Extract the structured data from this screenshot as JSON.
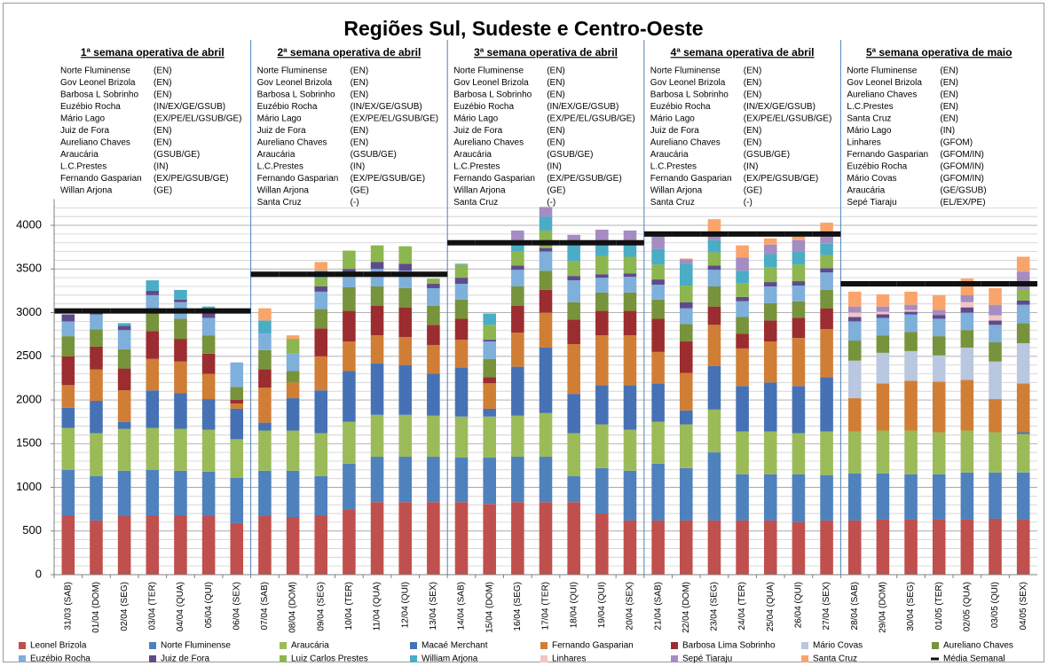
{
  "chart_data": {
    "type": "bar",
    "stacked": true,
    "title": "Regiões Sul, Sudeste e Centro-Oeste",
    "categories": [
      "31/03 (SAB)",
      "01/04 (DOM)",
      "02/04 (SEG)",
      "03/04 (TER)",
      "04/04 (QUA)",
      "05/04 (QUI)",
      "06/04 (SEX)",
      "07/04 (SAB)",
      "08/04 (DOM)",
      "09/04 (SEG)",
      "10/04 (TER)",
      "11/04 (QUA)",
      "12/04 (QUI)",
      "13/04 (SEX)",
      "14/04 (SAB)",
      "15/04 (DOM)",
      "16/04 (SEG)",
      "17/04 (TER)",
      "18/04 (QUI)",
      "19/04 (QUI)",
      "20/04 (SEX)",
      "21/04 (SAB)",
      "22/04 (DOM)",
      "23/04 (SEG)",
      "24/04 (TER)",
      "25/04 (QUA)",
      "26/04 (QUI)",
      "27/04 (SEX)",
      "28/04 (SAB)",
      "29/04 (DOM)",
      "30/04 (SEG)",
      "01/05 (TER)",
      "02/05 (QUA)",
      "03/05 (QUI)",
      "04/05 (SEX)"
    ],
    "series": [
      {
        "name": "Leonel Brizola",
        "color": "#C0504D",
        "values": [
          680,
          620,
          670,
          680,
          680,
          670,
          590,
          670,
          660,
          680,
          750,
          830,
          830,
          830,
          830,
          810,
          830,
          830,
          830,
          700,
          620,
          620,
          620,
          620,
          620,
          620,
          600,
          620,
          620,
          630,
          630,
          630,
          630,
          640,
          630
        ]
      },
      {
        "name": "Norte Fluminense",
        "color": "#4F81BD",
        "values": [
          520,
          510,
          520,
          520,
          510,
          510,
          520,
          520,
          530,
          450,
          520,
          520,
          520,
          520,
          510,
          530,
          520,
          520,
          300,
          520,
          570,
          650,
          600,
          780,
          530,
          530,
          550,
          520,
          540,
          530,
          520,
          520,
          540,
          530,
          540
        ]
      },
      {
        "name": "Araucária",
        "color": "#9BBB59",
        "values": [
          480,
          490,
          480,
          480,
          480,
          480,
          440,
          460,
          460,
          490,
          480,
          480,
          480,
          470,
          470,
          470,
          470,
          500,
          490,
          500,
          470,
          480,
          500,
          490,
          490,
          490,
          470,
          500,
          480,
          490,
          500,
          480,
          480,
          460,
          440
        ]
      },
      {
        "name": "Macaé Merchant",
        "color": "#4672B5",
        "values": [
          230,
          370,
          80,
          430,
          410,
          350,
          350,
          90,
          370,
          490,
          580,
          590,
          570,
          480,
          560,
          90,
          560,
          750,
          450,
          450,
          510,
          440,
          160,
          500,
          520,
          560,
          540,
          620,
          0,
          0,
          0,
          0,
          0,
          0,
          20
        ]
      },
      {
        "name": "Fernando Gasparian",
        "color": "#D07E36",
        "values": [
          260,
          360,
          360,
          360,
          360,
          290,
          60,
          400,
          180,
          390,
          340,
          320,
          320,
          330,
          320,
          290,
          390,
          400,
          570,
          570,
          570,
          360,
          430,
          470,
          430,
          470,
          550,
          550,
          380,
          540,
          570,
          580,
          580,
          380,
          560
        ]
      },
      {
        "name": "Barbosa Lima Sobrinho",
        "color": "#9B2D30",
        "values": [
          330,
          260,
          250,
          320,
          260,
          230,
          40,
          210,
          0,
          320,
          350,
          340,
          340,
          230,
          240,
          70,
          310,
          260,
          280,
          280,
          280,
          380,
          360,
          210,
          170,
          240,
          230,
          240,
          0,
          0,
          0,
          0,
          0,
          0,
          0
        ]
      },
      {
        "name": "Mário Covas",
        "color": "#B9C7E0",
        "values": [
          0,
          0,
          0,
          0,
          0,
          0,
          0,
          0,
          0,
          0,
          0,
          0,
          0,
          0,
          0,
          0,
          0,
          0,
          0,
          0,
          0,
          0,
          0,
          0,
          0,
          0,
          0,
          0,
          430,
          350,
          340,
          300,
          370,
          430,
          460
        ]
      },
      {
        "name": "Aureliano Chaves",
        "color": "#77933C",
        "values": [
          230,
          200,
          220,
          200,
          230,
          210,
          150,
          220,
          130,
          220,
          270,
          220,
          220,
          220,
          220,
          210,
          220,
          220,
          200,
          210,
          210,
          220,
          200,
          230,
          190,
          200,
          190,
          210,
          230,
          200,
          220,
          220,
          200,
          220,
          230
        ]
      },
      {
        "name": "Euzébio Rocha",
        "color": "#7FAFDB",
        "values": [
          170,
          170,
          220,
          210,
          190,
          200,
          280,
          190,
          200,
          200,
          170,
          200,
          200,
          200,
          180,
          200,
          190,
          220,
          250,
          170,
          180,
          170,
          180,
          190,
          180,
          190,
          180,
          200,
          220,
          200,
          200,
          200,
          200,
          200,
          210
        ]
      },
      {
        "name": "Juiz de Fora",
        "color": "#5F4B8B",
        "values": [
          80,
          20,
          50,
          50,
          30,
          50,
          0,
          0,
          0,
          60,
          40,
          80,
          80,
          50,
          70,
          20,
          50,
          40,
          50,
          40,
          40,
          60,
          70,
          50,
          50,
          50,
          50,
          50,
          50,
          40,
          30,
          40,
          60,
          50,
          50
        ]
      },
      {
        "name": "Luiz Carlos Prestes",
        "color": "#8DB650",
        "values": [
          0,
          0,
          0,
          0,
          0,
          0,
          0,
          0,
          170,
          100,
          210,
          190,
          200,
          60,
          150,
          170,
          160,
          200,
          170,
          210,
          190,
          170,
          190,
          150,
          160,
          170,
          190,
          150,
          0,
          0,
          0,
          0,
          0,
          0,
          130
        ]
      },
      {
        "name": "William Arjona",
        "color": "#4BACC6",
        "values": [
          0,
          0,
          30,
          120,
          110,
          80,
          0,
          150,
          0,
          80,
          0,
          0,
          0,
          0,
          10,
          130,
          110,
          160,
          180,
          150,
          150,
          180,
          250,
          140,
          140,
          150,
          150,
          130,
          0,
          0,
          0,
          0,
          0,
          0,
          0
        ]
      },
      {
        "name": "Linhares",
        "color": "#F2C4C3",
        "values": [
          0,
          0,
          0,
          0,
          0,
          0,
          0,
          0,
          0,
          0,
          0,
          0,
          0,
          0,
          0,
          0,
          0,
          0,
          0,
          0,
          0,
          0,
          0,
          0,
          0,
          0,
          0,
          0,
          50,
          30,
          20,
          0,
          60,
          60,
          0
        ]
      },
      {
        "name": "Sepé Tiaraju",
        "color": "#A58CC2",
        "values": [
          0,
          0,
          0,
          0,
          0,
          0,
          0,
          0,
          0,
          0,
          0,
          0,
          0,
          0,
          0,
          0,
          130,
          110,
          120,
          150,
          150,
          200,
          50,
          100,
          150,
          110,
          130,
          120,
          70,
          60,
          60,
          60,
          80,
          120,
          200
        ]
      },
      {
        "name": "Santa Cruz",
        "color": "#F9A46B",
        "values": [
          0,
          0,
          0,
          0,
          0,
          0,
          0,
          140,
          40,
          100,
          0,
          0,
          0,
          0,
          0,
          0,
          0,
          0,
          0,
          0,
          0,
          0,
          10,
          140,
          140,
          70,
          40,
          120,
          170,
          140,
          150,
          170,
          190,
          190,
          170
        ]
      },
      {
        "name": "Média Semanal",
        "type": "line",
        "color": "#111111",
        "values": [
          3020,
          3020,
          3020,
          3020,
          3020,
          3020,
          3020,
          3440,
          3440,
          3440,
          3440,
          3440,
          3440,
          3440,
          3800,
          3800,
          3800,
          3800,
          3800,
          3800,
          3800,
          3900,
          3900,
          3900,
          3900,
          3900,
          3900,
          3900,
          3330,
          3330,
          3330,
          3330,
          3330,
          3330,
          3330
        ]
      }
    ],
    "ylim": [
      0,
      4300
    ],
    "yticks": [
      0,
      500,
      1000,
      1500,
      2000,
      2500,
      3000,
      3500,
      4000
    ],
    "minor_yticks": [
      100,
      200,
      300,
      400,
      600,
      700,
      800,
      900,
      1100,
      1200,
      1300,
      1400,
      1600,
      1700,
      1800,
      1900,
      2100,
      2200,
      2300,
      2400,
      2600,
      2700,
      2800,
      2900,
      3100,
      3200,
      3300,
      3400,
      3600,
      3700,
      3800,
      3900,
      4100,
      4200
    ],
    "grid": true,
    "panels": [
      {
        "title": "1ª semana operativa de abril",
        "items": [
          [
            "Norte Fluminense",
            "(EN)"
          ],
          [
            "Gov Leonel Brizola",
            "(EN)"
          ],
          [
            "Barbosa L Sobrinho",
            "(EN)"
          ],
          [
            "Euzébio Rocha",
            "(IN/EX/GE/GSUB)"
          ],
          [
            "Mário Lago",
            "(EX/PE/EL/GSUB/GE)"
          ],
          [
            "Juiz de Fora",
            "(EN)"
          ],
          [
            "Aureliano Chaves",
            "(EN)"
          ],
          [
            "Araucária",
            "(GSUB/GE)"
          ],
          [
            "L.C.Prestes",
            "(IN)"
          ],
          [
            "Fernando Gasparian",
            "(EX/PE/GSUB/GE)"
          ],
          [
            "Willan Arjona",
            "(GE)"
          ]
        ]
      },
      {
        "title": "2ª semana  operativa de abril",
        "items": [
          [
            "Norte Fluminense",
            "(EN)"
          ],
          [
            "Gov Leonel Brizola",
            "(EN)"
          ],
          [
            "Barbosa L Sobrinho",
            "(EN)"
          ],
          [
            "Euzébio Rocha",
            "(IN/EX/GE/GSUB)"
          ],
          [
            "Mário Lago",
            "(EX/PE/EL/GSUB/GE)"
          ],
          [
            "Juiz de Fora",
            "(EN)"
          ],
          [
            "Aureliano Chaves",
            "(EN)"
          ],
          [
            "Araucária",
            "(GSUB/GE)"
          ],
          [
            "L.C.Prestes",
            "(IN)"
          ],
          [
            "Fernando Gasparian",
            "(EX/PE/GSUB/GE)"
          ],
          [
            "Willan Arjona",
            "(GE)"
          ],
          [
            "Santa Cruz",
            "(-)"
          ]
        ]
      },
      {
        "title": "3ª semana operativa de abril",
        "items": [
          [
            "Norte Fluminense",
            "(EN)"
          ],
          [
            "Gov Leonel Brizola",
            "(EN)"
          ],
          [
            "Barbosa L Sobrinho",
            "(EN)"
          ],
          [
            "Euzébio Rocha",
            "(IN/EX/GE/GSUB)"
          ],
          [
            "Mário Lago",
            "(EX/PE/EL/GSUB/GE)"
          ],
          [
            "Juiz de Fora",
            "(EN)"
          ],
          [
            "Aureliano Chaves",
            "(EN)"
          ],
          [
            "Araucária",
            "(GSUB/GE)"
          ],
          [
            "L.C.Prestes",
            "(IN)"
          ],
          [
            "Fernando Gasparian",
            "(EX/PE/GSUB/GE)"
          ],
          [
            "Willan Arjona",
            "(GE)"
          ],
          [
            "Santa Cruz",
            "(-)"
          ]
        ]
      },
      {
        "title": "4ª semana operativa de abril",
        "items": [
          [
            "Norte Fluminense",
            "(EN)"
          ],
          [
            "Gov Leonel Brizola",
            "(EN)"
          ],
          [
            "Barbosa L Sobrinho",
            "(EN)"
          ],
          [
            "Euzébio Rocha",
            "(IN/EX/GE/GSUB)"
          ],
          [
            "Mário Lago",
            "(EX/PE/EL/GSUB/GE)"
          ],
          [
            "Juiz de Fora",
            "(EN)"
          ],
          [
            "Aureliano Chaves",
            "(EN)"
          ],
          [
            "Araucária",
            "(GSUB/GE)"
          ],
          [
            "L.C.Prestes",
            "(IN)"
          ],
          [
            "Fernando Gasparian",
            "(EX/PE/GSUB/GE)"
          ],
          [
            "Willan Arjona",
            "(GE)"
          ],
          [
            "Santa Cruz",
            "(-)"
          ]
        ]
      },
      {
        "title": "5ª  semana operativa de maio",
        "items": [
          [
            "Norte Fluminense",
            "(EN)"
          ],
          [
            "Gov Leonel Brizola",
            "(EN)"
          ],
          [
            "Aureliano Chaves",
            "(EN)"
          ],
          [
            "L.C.Prestes",
            "(EN)"
          ],
          [
            "Santa Cruz",
            "(EN)"
          ],
          [
            "Mário Lago",
            "(IN)"
          ],
          [
            "Linhares",
            "(GFOM)"
          ],
          [
            "Fernando Gasparian",
            "(GFOM/IN)"
          ],
          [
            "Euzébio Rocha",
            "(GFOM/IN)"
          ],
          [
            "Mário Covas",
            "(GFOM/IN)"
          ],
          [
            "Araucária",
            "(GE/GSUB)"
          ],
          [
            "Sepé Tiaraju",
            "(EL/EX/PE)"
          ]
        ]
      }
    ]
  }
}
